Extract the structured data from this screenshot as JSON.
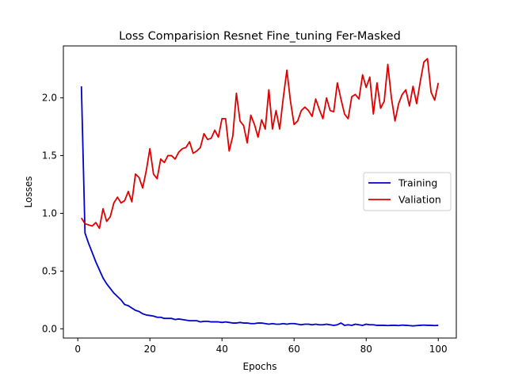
{
  "chart_data": {
    "type": "line",
    "title": "Loss Comparision Resnet Fine_tuning Fer-Masked",
    "xlabel": "Epochs",
    "ylabel": "Losses",
    "xlim": [
      -4,
      105
    ],
    "ylim": [
      -0.08,
      2.45
    ],
    "xticks": [
      0,
      20,
      40,
      60,
      80,
      100
    ],
    "xtick_labels": [
      "0",
      "20",
      "40",
      "60",
      "80",
      "100"
    ],
    "yticks": [
      0.0,
      0.5,
      1.0,
      1.5,
      2.0
    ],
    "ytick_labels": [
      "0.0",
      "0.5",
      "1.0",
      "1.5",
      "2.0"
    ],
    "grid": false,
    "legend_position": "center-right",
    "x": [
      1,
      2,
      3,
      4,
      5,
      6,
      7,
      8,
      9,
      10,
      11,
      12,
      13,
      14,
      15,
      16,
      17,
      18,
      19,
      20,
      21,
      22,
      23,
      24,
      25,
      26,
      27,
      28,
      29,
      30,
      31,
      32,
      33,
      34,
      35,
      36,
      37,
      38,
      39,
      40,
      41,
      42,
      43,
      44,
      45,
      46,
      47,
      48,
      49,
      50,
      51,
      52,
      53,
      54,
      55,
      56,
      57,
      58,
      59,
      60,
      61,
      62,
      63,
      64,
      65,
      66,
      67,
      68,
      69,
      70,
      71,
      72,
      73,
      74,
      75,
      76,
      77,
      78,
      79,
      80,
      81,
      82,
      83,
      84,
      85,
      86,
      87,
      88,
      89,
      90,
      91,
      92,
      93,
      94,
      95,
      96,
      97,
      98,
      99,
      100
    ],
    "series": [
      {
        "name": "Training",
        "color": "#0000cc",
        "values": [
          2.1,
          0.83,
          0.74,
          0.66,
          0.58,
          0.51,
          0.44,
          0.39,
          0.35,
          0.31,
          0.28,
          0.25,
          0.21,
          0.2,
          0.18,
          0.16,
          0.15,
          0.13,
          0.12,
          0.115,
          0.11,
          0.1,
          0.1,
          0.09,
          0.09,
          0.09,
          0.08,
          0.085,
          0.08,
          0.075,
          0.07,
          0.07,
          0.07,
          0.06,
          0.065,
          0.065,
          0.06,
          0.06,
          0.06,
          0.055,
          0.06,
          0.055,
          0.05,
          0.05,
          0.055,
          0.05,
          0.05,
          0.045,
          0.045,
          0.05,
          0.05,
          0.045,
          0.04,
          0.045,
          0.04,
          0.04,
          0.045,
          0.04,
          0.045,
          0.045,
          0.04,
          0.035,
          0.04,
          0.04,
          0.035,
          0.04,
          0.035,
          0.035,
          0.04,
          0.035,
          0.03,
          0.035,
          0.05,
          0.03,
          0.035,
          0.03,
          0.04,
          0.035,
          0.03,
          0.04,
          0.035,
          0.035,
          0.03,
          0.03,
          0.03,
          0.028,
          0.03,
          0.03,
          0.028,
          0.032,
          0.03,
          0.028,
          0.025,
          0.028,
          0.03,
          0.032,
          0.03,
          0.03,
          0.028,
          0.03
        ]
      },
      {
        "name": "Valiation",
        "color": "#dd0000",
        "values": [
          0.96,
          0.91,
          0.9,
          0.89,
          0.92,
          0.87,
          1.04,
          0.93,
          0.97,
          1.09,
          1.14,
          1.09,
          1.11,
          1.19,
          1.1,
          1.34,
          1.31,
          1.22,
          1.37,
          1.56,
          1.34,
          1.3,
          1.47,
          1.44,
          1.5,
          1.5,
          1.47,
          1.53,
          1.56,
          1.57,
          1.62,
          1.52,
          1.54,
          1.57,
          1.69,
          1.64,
          1.65,
          1.72,
          1.66,
          1.82,
          1.82,
          1.54,
          1.67,
          2.04,
          1.8,
          1.76,
          1.61,
          1.85,
          1.77,
          1.66,
          1.81,
          1.73,
          2.07,
          1.73,
          1.89,
          1.73,
          2.0,
          2.24,
          1.97,
          1.77,
          1.8,
          1.89,
          1.92,
          1.89,
          1.84,
          1.99,
          1.9,
          1.82,
          2.0,
          1.89,
          1.88,
          2.13,
          1.99,
          1.86,
          1.82,
          2.01,
          2.03,
          1.99,
          2.2,
          2.09,
          2.18,
          1.86,
          2.13,
          1.91,
          1.97,
          2.29,
          2.0,
          1.8,
          1.95,
          2.03,
          2.07,
          1.93,
          2.1,
          1.95,
          2.14,
          2.31,
          2.34,
          2.05,
          1.98,
          2.13
        ]
      }
    ]
  }
}
